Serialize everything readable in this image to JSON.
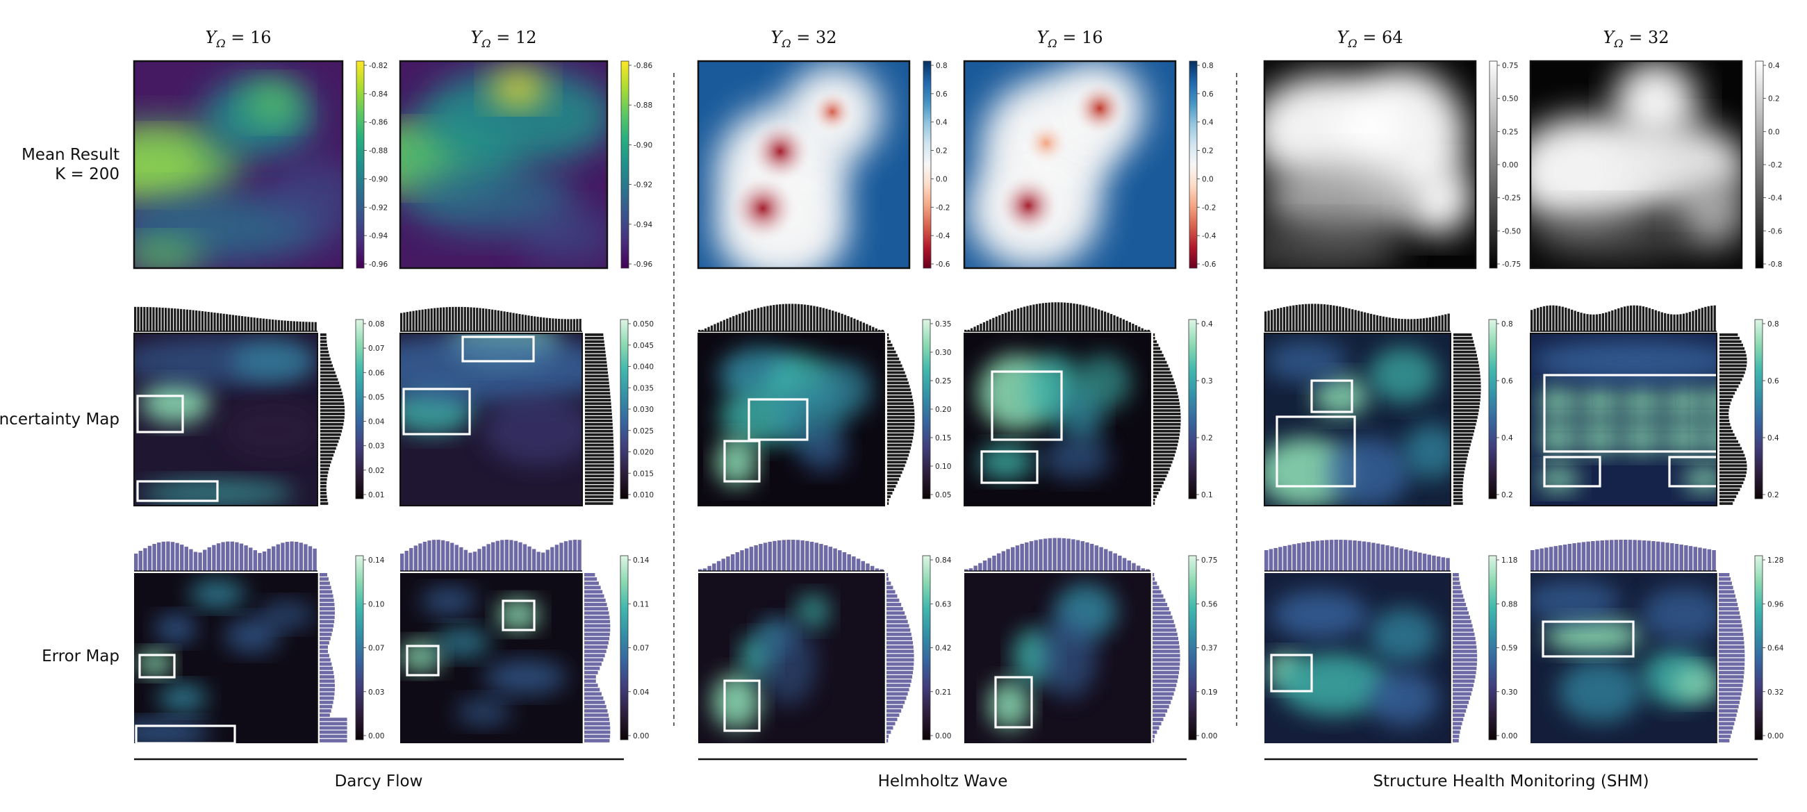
{
  "rows": [
    {
      "label": "Mean Result",
      "label2": "K = 200"
    },
    {
      "label": "Uncertainty Map",
      "label2": ""
    },
    {
      "label": "Error Map",
      "label2": ""
    }
  ],
  "groups": [
    "Darcy Flow",
    "Helmholtz Wave",
    "Structure Health Monitoring (SHM)"
  ],
  "y_symbol": "Y",
  "y_subscript": "Ω",
  "columns": [
    {
      "y_value": "16",
      "mean_ticks": [
        "-0.82",
        "-0.84",
        "-0.86",
        "-0.88",
        "-0.90",
        "-0.92",
        "-0.94",
        "-0.96"
      ],
      "unc_ticks": [
        "0.08",
        "0.07",
        "0.06",
        "0.05",
        "0.04",
        "0.03",
        "0.02",
        "0.01"
      ],
      "err_ticks": [
        "0.14",
        "0.10",
        "0.07",
        "0.03",
        "0.00"
      ]
    },
    {
      "y_value": "12",
      "mean_ticks": [
        "-0.86",
        "-0.88",
        "-0.90",
        "-0.92",
        "-0.94",
        "-0.96"
      ],
      "unc_ticks": [
        "0.050",
        "0.045",
        "0.040",
        "0.035",
        "0.030",
        "0.025",
        "0.020",
        "0.015",
        "0.010"
      ],
      "err_ticks": [
        "0.14",
        "0.11",
        "0.07",
        "0.04",
        "0.00"
      ]
    },
    {
      "y_value": "32",
      "mean_ticks": [
        "0.8",
        "0.6",
        "0.4",
        "0.2",
        "0.0",
        "-0.2",
        "-0.4",
        "-0.6"
      ],
      "unc_ticks": [
        "0.35",
        "0.30",
        "0.25",
        "0.20",
        "0.15",
        "0.10",
        "0.05"
      ],
      "err_ticks": [
        "0.84",
        "0.63",
        "0.42",
        "0.21",
        "0.00"
      ]
    },
    {
      "y_value": "16",
      "mean_ticks": [
        "0.8",
        "0.6",
        "0.4",
        "0.2",
        "0.0",
        "-0.2",
        "-0.4",
        "-0.6"
      ],
      "unc_ticks": [
        "0.4",
        "0.3",
        "0.2",
        "0.1"
      ],
      "err_ticks": [
        "0.75",
        "0.56",
        "0.37",
        "0.19",
        "0.00"
      ]
    },
    {
      "y_value": "64",
      "mean_ticks": [
        "0.75",
        "0.50",
        "0.25",
        "0.00",
        "-0.25",
        "-0.50",
        "-0.75"
      ],
      "unc_ticks": [
        "0.8",
        "0.6",
        "0.4",
        "0.2"
      ],
      "err_ticks": [
        "1.18",
        "0.88",
        "0.59",
        "0.30",
        "0.00"
      ]
    },
    {
      "y_value": "32",
      "mean_ticks": [
        "0.4",
        "0.2",
        "0.0",
        "-0.2",
        "-0.4",
        "-0.6",
        "-0.8"
      ],
      "unc_ticks": [
        "0.8",
        "0.6",
        "0.4",
        "0.2"
      ],
      "err_ticks": [
        "1.28",
        "0.96",
        "0.64",
        "0.32",
        "0.00"
      ]
    }
  ],
  "colors": {
    "viridis": [
      "#440154",
      "#472d7b",
      "#3b528b",
      "#2c728e",
      "#21918c",
      "#28ae80",
      "#5ec962",
      "#addc30",
      "#fde725"
    ],
    "rdbu": [
      "#67001f",
      "#b2182b",
      "#d6604d",
      "#f4a582",
      "#fddbc7",
      "#f7f7f7",
      "#d1e5f0",
      "#92c5de",
      "#4393c3",
      "#2166ac",
      "#053061"
    ],
    "mako": [
      "#0b0405",
      "#2e1e3c",
      "#413d7b",
      "#37659e",
      "#348fa7",
      "#40b7ad",
      "#8ad9b1",
      "#def5e5"
    ],
    "gray": [
      "#000000",
      "#ffffff"
    ],
    "hist_dark": "#1c1c1c",
    "hist_purple": "#6e6aa6"
  }
}
